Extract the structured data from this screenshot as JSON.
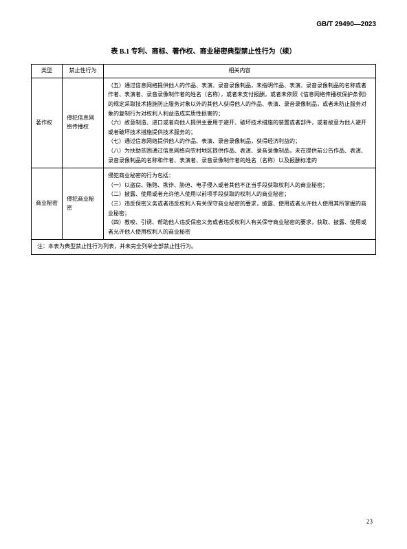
{
  "header": {
    "standard_number": "GB/T 29490—2023"
  },
  "table_title": "表 B.1  专利、商标、著作权、商业秘密典型禁止性行为（续）",
  "table": {
    "headers": {
      "col1": "类型",
      "col2": "禁止性行为",
      "col3": "相关内容"
    },
    "rows": [
      {
        "type": "著作权",
        "prohibited": "侵犯信息网络传播权",
        "content": "（五）通过信息网络提供他人的作品、表演、录音录像制品，未指明作品、表演、录音录像制品的名称或者作者、表演者、录音录像制作者的姓名（名称），或者未支付报酬，或者未依照《信息网络传播权保护条例》的规定采取技术措施防止服务对象以外的其他人获得他人的作品、表演、录音录像制品，或者未防止服务对象的复制行为对权利人利益造成实质性损害的；\n（六）故意制造、进口或者向他人提供主要用于避开、破坏技术措施的装置或者部件，或者故意为他人避开或者破坏技术措施提供技术服务的；\n（七）通过信息网络提供他人的作品、表演、录音录像制品，获得经济利益的；\n（八）为扶助贫困通过信息网络向农村地区提供作品、表演、录音录像制品，未在提供前公告作品、表演、录音录像制品的名称和作者、表演者、录音录像制作者的姓名（名称）以及报酬标准的"
      },
      {
        "type": "商业秘密",
        "prohibited": "侵犯商业秘密",
        "content": "侵犯商业秘密的行为包括：\n（一）以盗窃、贿赂、欺诈、胁迫、电子侵入或者其他不正当手段获取权利人的商业秘密；\n（二）披露、使用或者允许他人使用以前项手段获取的权利人的商业秘密；\n（三）违反保密义务或者违反权利人有关保守商业秘密的要求，披露、使用或者允许他人使用其所掌握的商业秘密；\n（四）教唆、引诱、帮助他人违反保密义务或者违反权利人有关保守商业秘密的要求，获取、披露、使用或者允许他人使用权利人的商业秘密"
      }
    ],
    "note": "注：本表为典型禁止性行为列表，并未完全列举全部禁止性行为。"
  },
  "page_number": "23"
}
